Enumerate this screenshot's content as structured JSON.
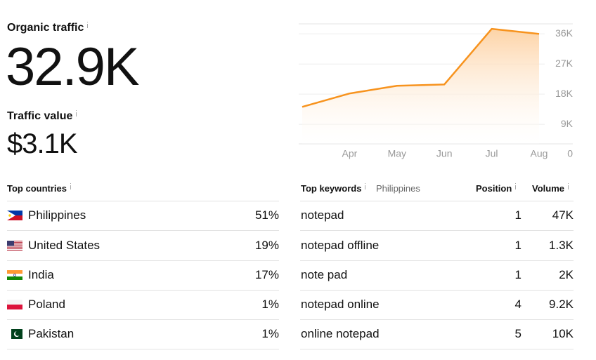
{
  "organic_traffic": {
    "label": "Organic traffic",
    "value": "32.9K"
  },
  "traffic_value": {
    "label": "Traffic value",
    "value": "$3.1K"
  },
  "chart_data": {
    "type": "line",
    "categories": [
      null,
      "Apr",
      "May",
      "Jun",
      "Jul",
      "Aug"
    ],
    "series": [
      {
        "name": "Organic traffic",
        "color": "#f7931e",
        "values": [
          14200,
          18200,
          20500,
          20900,
          37500,
          36000
        ]
      }
    ],
    "ylim": [
      0,
      39000
    ],
    "yticks": [
      0,
      {
        "value": 9000,
        "label": "9K"
      },
      {
        "value": 18000,
        "label": "18K"
      },
      {
        "value": 27000,
        "label": "27K"
      },
      {
        "value": 36000,
        "label": "36K"
      }
    ],
    "grid": true
  },
  "countries": {
    "title": "Top countries",
    "rows": [
      [
        "Philippines",
        "51%"
      ],
      [
        "United States",
        "19%"
      ],
      [
        "India",
        "17%"
      ],
      [
        "Poland",
        "1%"
      ],
      [
        "Pakistan",
        "1%"
      ]
    ]
  },
  "keywords": {
    "title": "Top keywords",
    "filter": "Philippines",
    "position_header": "Position",
    "volume_header": "Volume",
    "rows": [
      [
        "notepad",
        "1",
        "47K"
      ],
      [
        "notepad offline",
        "1",
        "1.3K"
      ],
      [
        "note pad",
        "1",
        "2K"
      ],
      [
        "notepad online",
        "4",
        "9.2K"
      ],
      [
        "online notepad",
        "5",
        "10K"
      ]
    ]
  }
}
